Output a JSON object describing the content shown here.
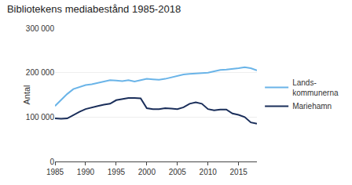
{
  "chart_data": {
    "type": "line",
    "title": "Bibliotekens mediabestånd 1985-2018",
    "ylabel": "Antal",
    "x": [
      1985,
      1986,
      1987,
      1988,
      1989,
      1990,
      1991,
      1992,
      1993,
      1994,
      1995,
      1996,
      1997,
      1998,
      1999,
      2000,
      2001,
      2002,
      2003,
      2004,
      2005,
      2006,
      2007,
      2008,
      2009,
      2010,
      2011,
      2012,
      2013,
      2014,
      2015,
      2016,
      2017,
      2018
    ],
    "series": [
      {
        "name": "Lands-\nkommunerna",
        "color": "#6ab4e8",
        "values": [
          125000,
          138000,
          152000,
          163000,
          168000,
          172000,
          174000,
          177000,
          180000,
          183000,
          182000,
          181000,
          183000,
          180000,
          183000,
          186000,
          185000,
          184000,
          186000,
          189000,
          193000,
          196000,
          197000,
          198000,
          199000,
          200000,
          203000,
          206000,
          207000,
          208000,
          210000,
          212000,
          210000,
          205000
        ]
      },
      {
        "name": "Mariehamn",
        "color": "#1a2e5a",
        "values": [
          97000,
          96000,
          97000,
          105000,
          112000,
          118000,
          122000,
          125000,
          128000,
          130000,
          138000,
          140000,
          143000,
          143000,
          142000,
          120000,
          118000,
          118000,
          120000,
          119000,
          118000,
          122000,
          130000,
          133000,
          130000,
          118000,
          115000,
          117000,
          117000,
          108000,
          105000,
          100000,
          88000,
          85000
        ]
      }
    ],
    "xlim": [
      1985,
      2018
    ],
    "xticks": [
      1985,
      1990,
      1995,
      2000,
      2005,
      2010,
      2015
    ],
    "ylim": [
      0,
      300000
    ],
    "yticks": [
      0,
      {
        "value": 100000,
        "label": "100 000"
      },
      {
        "value": 200000,
        "label": "200 000"
      },
      {
        "value": 300000,
        "label": "300 000"
      }
    ],
    "grid": true,
    "legend": "right"
  }
}
